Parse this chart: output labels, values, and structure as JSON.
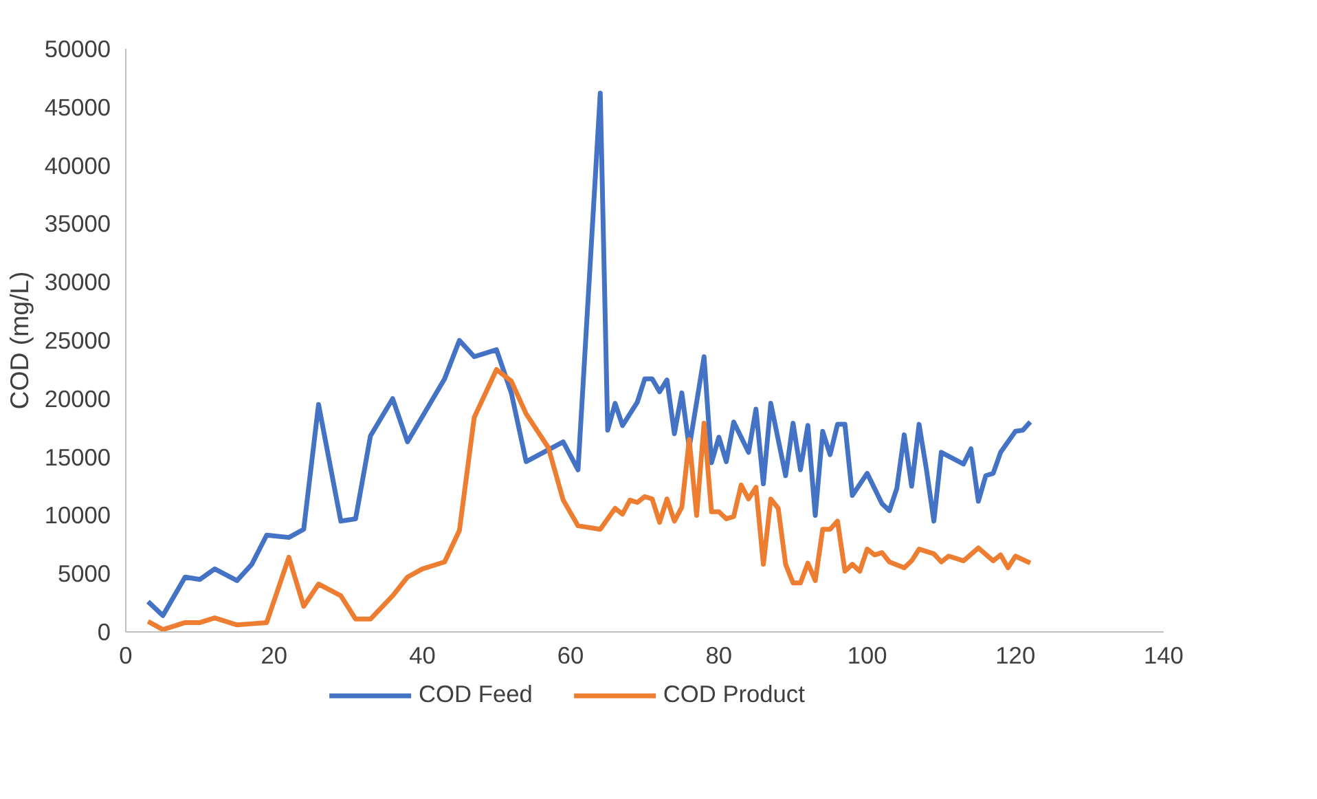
{
  "chart_data": {
    "type": "line",
    "ylabel": "COD (mg/L)",
    "xlim": [
      0,
      140
    ],
    "xticks": [
      0,
      20,
      40,
      60,
      80,
      100,
      120,
      140
    ],
    "ylim": [
      0,
      50000
    ],
    "yticks": [
      0,
      5000,
      10000,
      15000,
      20000,
      25000,
      30000,
      35000,
      40000,
      45000,
      50000
    ],
    "grid": false,
    "legend": "bottom",
    "marker": "none",
    "line_style": "solid",
    "series": [
      {
        "name": "COD Feed",
        "color": "#4472c4",
        "x": [
          3,
          5,
          8,
          10,
          12,
          15,
          17,
          19,
          22,
          24,
          26,
          29,
          31,
          33,
          36,
          38,
          43,
          45,
          47,
          50,
          52,
          54,
          59,
          61,
          64,
          65,
          66,
          67,
          69,
          70,
          71,
          72,
          73,
          74,
          75,
          76,
          78,
          79,
          80,
          81,
          82,
          84,
          85,
          86,
          87,
          89,
          90,
          91,
          92,
          93,
          94,
          95,
          96,
          97,
          98,
          100,
          102,
          103,
          104,
          105,
          106,
          107,
          108,
          109,
          110,
          113,
          114,
          115,
          116,
          117,
          118,
          120,
          121,
          122
        ],
        "values": [
          2600,
          1400,
          4700,
          4500,
          5400,
          4400,
          5800,
          8300,
          8100,
          8800,
          19500,
          9500,
          9700,
          16800,
          20000,
          16300,
          21700,
          25000,
          23600,
          24200,
          20500,
          14600,
          16300,
          13900,
          46200,
          17300,
          19600,
          17700,
          19700,
          21700,
          21700,
          20600,
          21600,
          17000,
          20500,
          15800,
          23600,
          14500,
          16700,
          14600,
          18000,
          15400,
          19100,
          12700,
          19600,
          13400,
          17900,
          13900,
          17700,
          10000,
          17200,
          15200,
          17800,
          17800,
          11700,
          13600,
          11000,
          10400,
          12300,
          16900,
          12500,
          17800,
          13900,
          9500,
          15400,
          14400,
          15700,
          11200,
          13400,
          13600,
          15400,
          17200,
          17300,
          18000
        ]
      },
      {
        "name": "COD Product",
        "color": "#ed7d31",
        "x": [
          3,
          5,
          8,
          10,
          12,
          15,
          17,
          19,
          22,
          24,
          26,
          29,
          31,
          33,
          36,
          38,
          40,
          43,
          45,
          47,
          50,
          52,
          54,
          57,
          59,
          61,
          64,
          66,
          67,
          68,
          69,
          70,
          71,
          72,
          73,
          74,
          75,
          76,
          77,
          78,
          79,
          80,
          81,
          82,
          83,
          84,
          85,
          86,
          87,
          88,
          89,
          90,
          91,
          92,
          93,
          94,
          95,
          96,
          97,
          98,
          99,
          100,
          101,
          102,
          103,
          105,
          106,
          107,
          109,
          110,
          111,
          113,
          115,
          117,
          118,
          119,
          120,
          122
        ],
        "values": [
          900,
          200,
          800,
          800,
          1200,
          600,
          700,
          800,
          6400,
          2200,
          4100,
          3100,
          1100,
          1100,
          3100,
          4700,
          5400,
          6000,
          8700,
          18400,
          22500,
          21500,
          18700,
          15800,
          11300,
          9100,
          8800,
          10600,
          10100,
          11300,
          11100,
          11600,
          11400,
          9400,
          11400,
          9500,
          10700,
          16500,
          10000,
          17900,
          10300,
          10300,
          9700,
          9900,
          12600,
          11400,
          12400,
          5800,
          11400,
          10600,
          5800,
          4200,
          4200,
          5900,
          4400,
          8800,
          8800,
          9500,
          5200,
          5800,
          5200,
          7100,
          6600,
          6800,
          6000,
          5500,
          6100,
          7100,
          6700,
          6000,
          6500,
          6100,
          7200,
          6100,
          6600,
          5500,
          6500,
          5900
        ]
      }
    ]
  }
}
